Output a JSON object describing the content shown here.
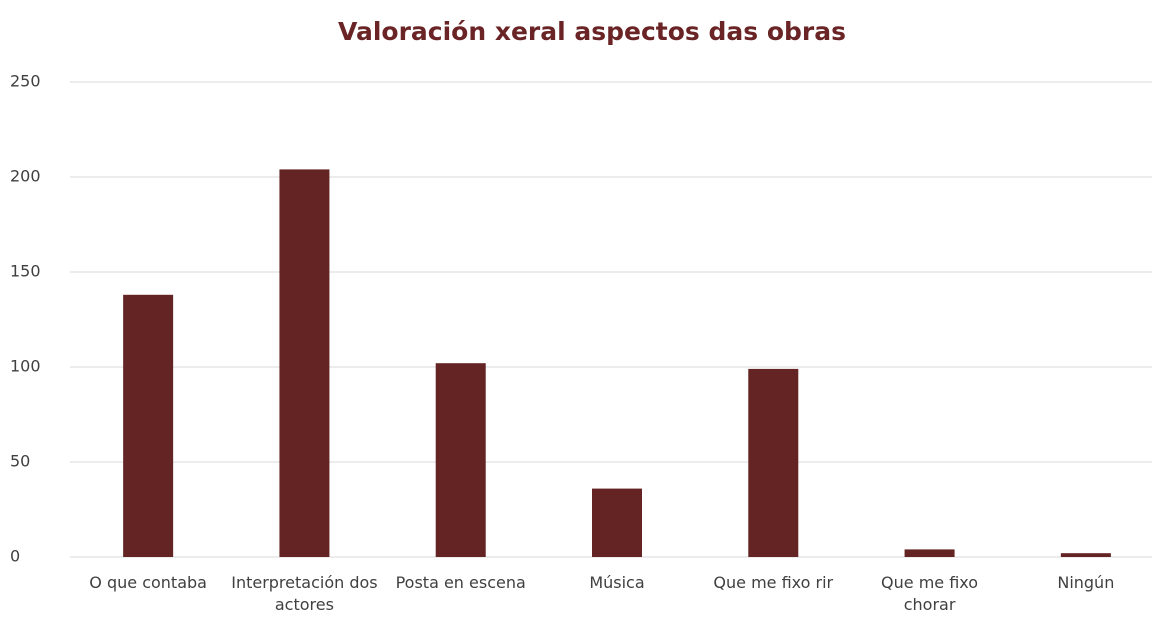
{
  "chart_data": {
    "type": "bar",
    "title": "Valoración xeral aspectos das obras",
    "categories": [
      "O que contaba",
      "Interpretación dos actores",
      "Posta en escena",
      "Música",
      "Que me fixo rir",
      "Que me fixo chorar",
      "Ningún"
    ],
    "values": [
      138,
      204,
      102,
      36,
      99,
      4,
      2
    ],
    "color": "#632423",
    "ylim": [
      0,
      250
    ],
    "yticks": [
      0,
      50,
      100,
      150,
      200,
      250
    ],
    "grid": true
  }
}
